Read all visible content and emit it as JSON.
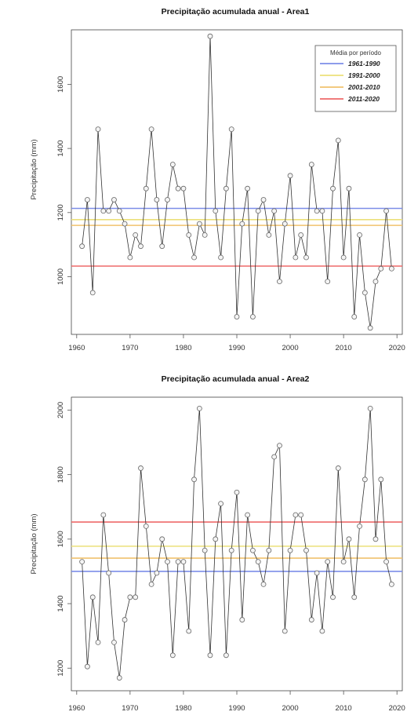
{
  "chart_data": [
    {
      "type": "line",
      "title": "Precipitação acumulada anual - Area1",
      "xlabel": "",
      "ylabel": "Precipitação (mm)",
      "xlim": [
        1959,
        2021
      ],
      "ylim": [
        820,
        1770
      ],
      "xticks": [
        1960,
        1970,
        1980,
        1990,
        2000,
        2010,
        2020
      ],
      "yticks": [
        1000,
        1200,
        1400,
        1600
      ],
      "grid": false,
      "legend_position": "top-right",
      "legend_title": "Média por período",
      "x": [
        1961,
        1962,
        1963,
        1964,
        1965,
        1966,
        1967,
        1968,
        1969,
        1970,
        1971,
        1972,
        1973,
        1974,
        1975,
        1976,
        1977,
        1978,
        1979,
        1980,
        1981,
        1982,
        1983,
        1984,
        1985,
        1986,
        1987,
        1988,
        1989,
        1990,
        1991,
        1992,
        1993,
        1994,
        1995,
        1996,
        1997,
        1998,
        1999,
        2000,
        2001,
        2002,
        2003,
        2004,
        2005,
        2006,
        2007,
        2008,
        2009,
        2010,
        2011,
        2012,
        2013,
        2014,
        2015,
        2016,
        2017,
        2018,
        2019,
        2020
      ],
      "series": [
        {
          "values": [
            1095,
            1240,
            950,
            1460,
            1205,
            1205,
            1240,
            1205,
            1165,
            1060,
            1130,
            1095,
            1275,
            1460,
            1240,
            1095,
            1240,
            1350,
            1275,
            1275,
            1130,
            1060,
            1165,
            1130,
            1750,
            1205,
            1060,
            1275,
            1460,
            875,
            1165,
            1275,
            875,
            1205,
            1240,
            1130,
            1205,
            985,
            1165,
            1315,
            1060,
            1130,
            1060,
            1350,
            1205,
            1205,
            985,
            1275,
            1425,
            1060,
            1275,
            875,
            1130,
            950,
            840,
            985,
            1025,
            1205,
            1025,
            null
          ],
          "color": "#333333"
        }
      ],
      "period_means": [
        {
          "label": "1961-1990",
          "value": 1213,
          "color": "#7d8ee8"
        },
        {
          "label": "1991-2000",
          "value": 1178,
          "color": "#ece07a"
        },
        {
          "label": "2001-2010",
          "value": 1160,
          "color": "#f0c26e"
        },
        {
          "label": "2011-2020",
          "value": 1033,
          "color": "#ee6a6a"
        }
      ]
    },
    {
      "type": "line",
      "title": "Precipitação acumulada anual - Area2",
      "xlabel": "",
      "ylabel": "Precipitação (mm)",
      "xlim": [
        1959,
        2021
      ],
      "ylim": [
        1130,
        2040
      ],
      "xticks": [
        1960,
        1970,
        1980,
        1990,
        2000,
        2010,
        2020
      ],
      "yticks": [
        1200,
        1400,
        1600,
        1800,
        2000
      ],
      "grid": false,
      "x": [
        1961,
        1962,
        1963,
        1964,
        1965,
        1966,
        1967,
        1968,
        1969,
        1970,
        1971,
        1972,
        1973,
        1974,
        1975,
        1976,
        1977,
        1978,
        1979,
        1980,
        1981,
        1982,
        1983,
        1984,
        1985,
        1986,
        1987,
        1988,
        1989,
        1990,
        1991,
        1992,
        1993,
        1994,
        1995,
        1996,
        1997,
        1998,
        1999,
        2000,
        2001,
        2002,
        2003,
        2004,
        2005,
        2006,
        2007,
        2008,
        2009,
        2010,
        2011,
        2012,
        2013,
        2014,
        2015,
        2016,
        2017,
        2018,
        2019,
        2020
      ],
      "series": [
        {
          "values": [
            1530,
            1205,
            1420,
            1280,
            1675,
            1495,
            1280,
            1170,
            1350,
            1420,
            1420,
            1820,
            1640,
            1460,
            1495,
            1600,
            1530,
            1240,
            1530,
            1530,
            1315,
            1785,
            2005,
            1565,
            1240,
            1600,
            1710,
            1240,
            1565,
            1745,
            1350,
            1675,
            1565,
            1530,
            1460,
            1565,
            1855,
            1890,
            1315,
            1565,
            1675,
            1675,
            1565,
            1350,
            1495,
            1315,
            1530,
            1420,
            1820,
            1530,
            1600,
            1420,
            1640,
            1785,
            2005,
            1600,
            1785,
            1530,
            1460,
            null
          ],
          "color": "#333333"
        }
      ],
      "period_means": [
        {
          "label": "1961-1990",
          "value": 1500,
          "color": "#7d8ee8"
        },
        {
          "label": "1991-2000",
          "value": 1578,
          "color": "#ece07a"
        },
        {
          "label": "2001-2010",
          "value": 1541,
          "color": "#f0c26e"
        },
        {
          "label": "2011-2020",
          "value": 1653,
          "color": "#ee6a6a"
        }
      ]
    }
  ]
}
